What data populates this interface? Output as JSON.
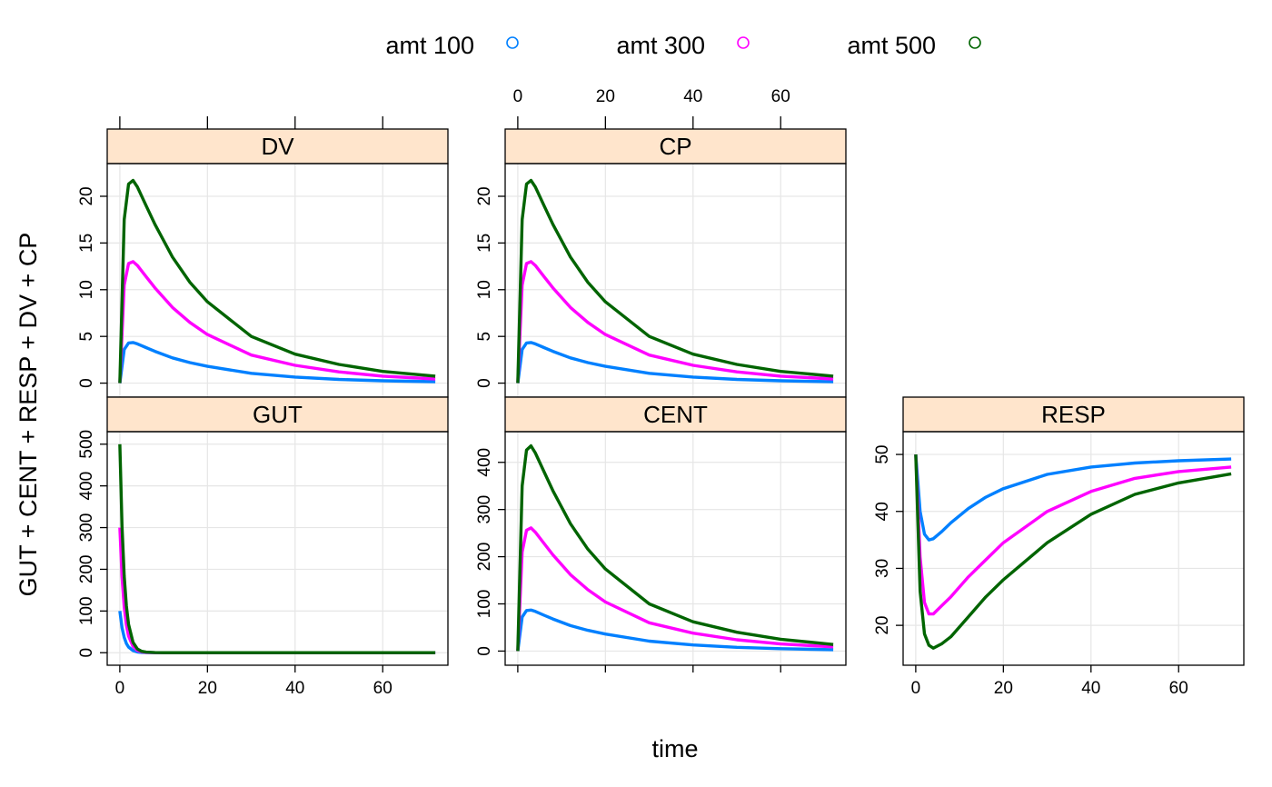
{
  "chart_data": {
    "type": "line",
    "xlabel": "time",
    "ylabel": "GUT + CENT + RESP + DV + CP",
    "xlim": [
      0,
      72
    ],
    "xticks": [
      0,
      20,
      40,
      60
    ],
    "grid": true,
    "legend_position": "top",
    "legend": [
      {
        "label": "amt 100",
        "color": "#0080ff"
      },
      {
        "label": "amt 300",
        "color": "#ff00ff"
      },
      {
        "label": "amt 500",
        "color": "#006400"
      }
    ],
    "panels": [
      {
        "key": "DV",
        "title": "DV",
        "ylim": [
          -1.5,
          23.5
        ],
        "yticks": [
          0,
          5,
          10,
          15,
          20
        ],
        "series": [
          {
            "x": [
              0,
              1,
              2,
              3,
              4,
              6,
              8,
              12,
              16,
              20,
              30,
              40,
              50,
              60,
              72
            ],
            "y": [
              0,
              3.6,
              4.3,
              4.35,
              4.2,
              3.8,
              3.4,
              2.7,
              2.2,
              1.8,
              1.05,
              0.65,
              0.4,
              0.25,
              0.15
            ]
          },
          {
            "x": [
              0,
              1,
              2,
              3,
              4,
              6,
              8,
              12,
              16,
              20,
              30,
              40,
              50,
              60,
              72
            ],
            "y": [
              0,
              10.5,
              12.8,
              13.0,
              12.6,
              11.4,
              10.2,
              8.1,
              6.5,
              5.2,
              3.0,
              1.9,
              1.2,
              0.75,
              0.45
            ]
          },
          {
            "x": [
              0,
              1,
              2,
              3,
              4,
              6,
              8,
              12,
              16,
              20,
              30,
              40,
              50,
              60,
              72
            ],
            "y": [
              0,
              17.5,
              21.3,
              21.7,
              21.0,
              19.0,
              17.0,
              13.5,
              10.8,
              8.7,
              5.0,
              3.1,
              2.0,
              1.25,
              0.75
            ]
          }
        ]
      },
      {
        "key": "CP",
        "title": "CP",
        "ylim": [
          -1.5,
          23.5
        ],
        "yticks": [
          0,
          5,
          10,
          15,
          20
        ],
        "series": [
          {
            "x": [
              0,
              1,
              2,
              3,
              4,
              6,
              8,
              12,
              16,
              20,
              30,
              40,
              50,
              60,
              72
            ],
            "y": [
              0,
              3.6,
              4.3,
              4.35,
              4.2,
              3.8,
              3.4,
              2.7,
              2.2,
              1.8,
              1.05,
              0.65,
              0.4,
              0.25,
              0.15
            ]
          },
          {
            "x": [
              0,
              1,
              2,
              3,
              4,
              6,
              8,
              12,
              16,
              20,
              30,
              40,
              50,
              60,
              72
            ],
            "y": [
              0,
              10.5,
              12.8,
              13.0,
              12.6,
              11.4,
              10.2,
              8.1,
              6.5,
              5.2,
              3.0,
              1.9,
              1.2,
              0.75,
              0.45
            ]
          },
          {
            "x": [
              0,
              1,
              2,
              3,
              4,
              6,
              8,
              12,
              16,
              20,
              30,
              40,
              50,
              60,
              72
            ],
            "y": [
              0,
              17.5,
              21.3,
              21.7,
              21.0,
              19.0,
              17.0,
              13.5,
              10.8,
              8.7,
              5.0,
              3.1,
              2.0,
              1.25,
              0.75
            ]
          }
        ]
      },
      {
        "key": "GUT",
        "title": "GUT",
        "ylim": [
          -30,
          530
        ],
        "yticks": [
          0,
          100,
          200,
          300,
          400,
          500
        ],
        "series": [
          {
            "x": [
              0,
              0.5,
              1,
              1.5,
              2,
              3,
              4,
              5,
              6,
              8,
              10,
              20,
              40,
              72
            ],
            "y": [
              100,
              60,
              37,
              22,
              13.5,
              5,
              1.8,
              0.7,
              0.3,
              0,
              0,
              0,
              0,
              0
            ]
          },
          {
            "x": [
              0,
              0.5,
              1,
              1.5,
              2,
              3,
              4,
              5,
              6,
              8,
              10,
              20,
              40,
              72
            ],
            "y": [
              300,
              182,
              110,
              67,
              40,
              15,
              5.5,
              2,
              0.8,
              0.1,
              0,
              0,
              0,
              0
            ]
          },
          {
            "x": [
              0,
              0.5,
              1,
              1.5,
              2,
              3,
              4,
              5,
              6,
              8,
              10,
              20,
              40,
              72
            ],
            "y": [
              500,
              303,
              184,
              112,
              68,
              25,
              9,
              3.4,
              1.3,
              0.2,
              0,
              0,
              0,
              0
            ]
          }
        ]
      },
      {
        "key": "CENT",
        "title": "CENT",
        "ylim": [
          -30,
          465
        ],
        "yticks": [
          0,
          100,
          200,
          300,
          400
        ],
        "series": [
          {
            "x": [
              0,
              1,
              2,
              3,
              4,
              6,
              8,
              12,
              16,
              20,
              30,
              40,
              50,
              60,
              72
            ],
            "y": [
              0,
              72,
              86,
              87,
              84,
              76,
              68,
              54,
              44,
              36,
              21,
              13,
              8,
              5,
              3
            ]
          },
          {
            "x": [
              0,
              1,
              2,
              3,
              4,
              6,
              8,
              12,
              16,
              20,
              30,
              40,
              50,
              60,
              72
            ],
            "y": [
              0,
              210,
              256,
              261,
              252,
              228,
              204,
              162,
              130,
              104,
              60,
              38,
              24,
              15,
              9
            ]
          },
          {
            "x": [
              0,
              1,
              2,
              3,
              4,
              6,
              8,
              12,
              16,
              20,
              30,
              40,
              50,
              60,
              72
            ],
            "y": [
              0,
              350,
              426,
              435,
              420,
              380,
              340,
              270,
              216,
              174,
              100,
              62,
              40,
              25,
              14
            ]
          }
        ]
      },
      {
        "key": "RESP",
        "title": "RESP",
        "ylim": [
          13,
          54
        ],
        "yticks": [
          20,
          30,
          40,
          50
        ],
        "series": [
          {
            "x": [
              0,
              1,
              2,
              3,
              4,
              6,
              8,
              12,
              16,
              20,
              30,
              40,
              50,
              60,
              72
            ],
            "y": [
              50,
              40,
              36,
              35,
              35.2,
              36.5,
              38,
              40.5,
              42.5,
              44,
              46.5,
              47.8,
              48.5,
              48.9,
              49.2
            ]
          },
          {
            "x": [
              0,
              1,
              2,
              3,
              4,
              6,
              8,
              12,
              16,
              20,
              30,
              40,
              50,
              60,
              72
            ],
            "y": [
              50,
              32,
              24,
              22,
              22,
              23.5,
              25,
              28.5,
              31.5,
              34.5,
              40,
              43.5,
              45.8,
              47,
              47.8
            ]
          },
          {
            "x": [
              0,
              1,
              2,
              3,
              4,
              6,
              8,
              12,
              16,
              20,
              30,
              40,
              50,
              60,
              72
            ],
            "y": [
              50,
              26,
              18.5,
              16.5,
              16,
              16.8,
              18,
              21.5,
              25,
              28,
              34.5,
              39.5,
              43,
              45,
              46.6
            ]
          }
        ]
      }
    ]
  }
}
